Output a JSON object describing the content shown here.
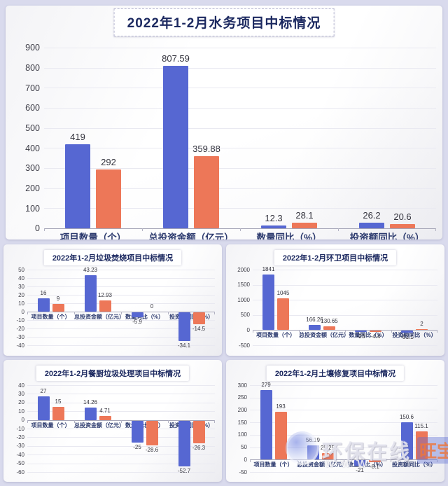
{
  "page": {
    "background_color": "#d9daed",
    "panel_color": "#ffffff",
    "title_color": "#1c2960"
  },
  "colors": {
    "bar_blue": "#5667d2",
    "bar_orange": "#ed7758",
    "grid_line": "#e9e9f1",
    "zero_axis": "#a6a6b8",
    "value_label": "#33333d",
    "category_label": "#2c3a6e"
  },
  "watermark": {
    "logo": "circle-swoosh-logo",
    "brand": "环保在线",
    "tag": "旺宝",
    "url_text": "WWW"
  },
  "chart_data": [
    {
      "id": "main",
      "type": "bar",
      "title": "2022年1-2月水务项目中标情况",
      "categories": [
        "项目数量（个）",
        "总投资金额（亿元）",
        "数量同比（%）",
        "投资额同比（%）"
      ],
      "series": [
        {
          "name": "blue-series",
          "color": "#5667d2",
          "values": [
            419,
            807.59,
            12.3,
            26.2
          ]
        },
        {
          "name": "orange-series",
          "color": "#ed7758",
          "values": [
            292,
            359.88,
            28.1,
            20.6
          ]
        }
      ],
      "xlabel": "",
      "ylabel": "",
      "ylim": [
        0,
        900
      ],
      "ystep": 100,
      "grid": true,
      "legend": "none"
    },
    {
      "id": "waste-incineration",
      "type": "bar",
      "title": "2022年1-2月垃圾焚烧项目中标情况",
      "categories": [
        "项目数量（个）",
        "总投资金额（亿元）",
        "数量同比（%）",
        "投资额同比（%）"
      ],
      "series": [
        {
          "name": "blue-series",
          "color": "#5667d2",
          "values": [
            16,
            43.23,
            -5.9,
            -34.1
          ]
        },
        {
          "name": "orange-series",
          "color": "#ed7758",
          "values": [
            9,
            12.93,
            0,
            -14.5
          ]
        }
      ],
      "xlabel": "",
      "ylabel": "",
      "ylim": [
        -40,
        50
      ],
      "ystep": 10,
      "grid": true,
      "legend": "none"
    },
    {
      "id": "kitchen-waste",
      "type": "bar",
      "title": "2022年1-2月餐厨垃圾处理项目中标情况",
      "categories": [
        "项目数量（个）",
        "总投资金额（亿元）",
        "数量同比（%）",
        "投资额同比（%）"
      ],
      "series": [
        {
          "name": "blue-series",
          "color": "#5667d2",
          "values": [
            27,
            14.26,
            -25,
            -52.7
          ]
        },
        {
          "name": "orange-series",
          "color": "#ed7758",
          "values": [
            15,
            4.71,
            -28.6,
            -26.3
          ]
        }
      ],
      "xlabel": "",
      "ylabel": "",
      "ylim": [
        -60,
        40
      ],
      "ystep": 10,
      "grid": true,
      "legend": "none"
    },
    {
      "id": "sanitation",
      "type": "bar",
      "title": "2022年1-2月环卫项目中标情况",
      "categories": [
        "项目数量（个）",
        "总投资金额（亿元）",
        "数量同比（%）",
        "投资额同比（%）"
      ],
      "series": [
        {
          "name": "blue-series",
          "color": "#5667d2",
          "values": [
            1841,
            166.26,
            -23,
            -51.1
          ]
        },
        {
          "name": "orange-series",
          "color": "#ed7758",
          "values": [
            1045,
            130.65,
            -4.4,
            2
          ]
        }
      ],
      "xlabel": "",
      "ylabel": "",
      "ylim": [
        -500,
        2000
      ],
      "ystep": 500,
      "grid": true,
      "legend": "none"
    },
    {
      "id": "soil-remediation",
      "type": "bar",
      "title": "2022年1-2月土壤修复项目中标情况",
      "categories": [
        "项目数量（个）",
        "总投资金额（亿元）",
        "数量同比（%）",
        "投资额同比（%）"
      ],
      "series": [
        {
          "name": "blue-series",
          "color": "#5667d2",
          "values": [
            279,
            56.19,
            -21,
            150.6
          ]
        },
        {
          "name": "orange-series",
          "color": "#ed7758",
          "values": [
            193,
            25.25,
            -8.1,
            115.1
          ]
        }
      ],
      "xlabel": "",
      "ylabel": "",
      "ylim": [
        -50,
        300
      ],
      "ystep": 50,
      "grid": true,
      "legend": "none"
    }
  ]
}
